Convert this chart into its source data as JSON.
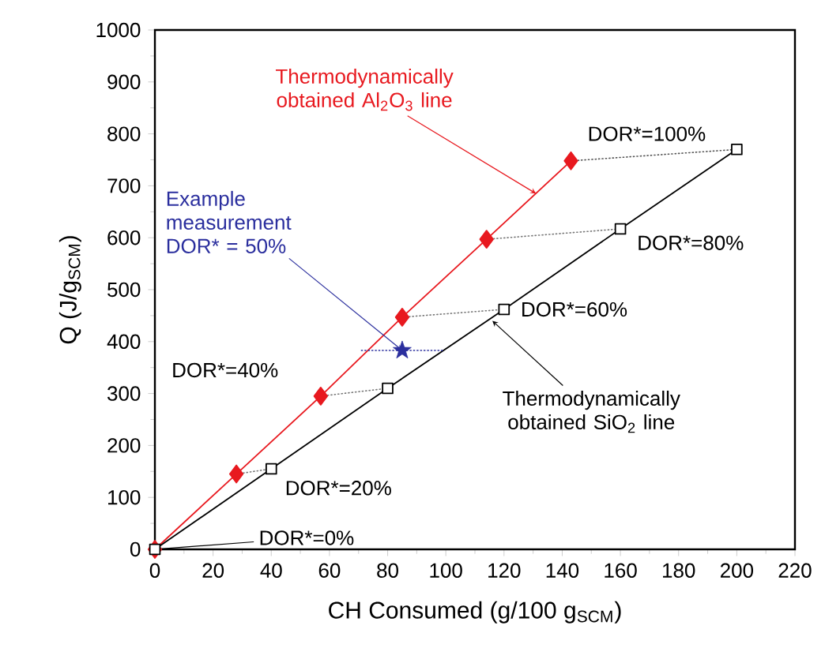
{
  "chart_data": {
    "type": "line",
    "xlabel": "CH Consumed (g/100 g$_{SCM}$)",
    "ylabel": "Q (J/g$_{SCM}$)",
    "xlim": [
      0,
      220
    ],
    "xticks": [
      0,
      20,
      40,
      60,
      80,
      100,
      120,
      140,
      160,
      180,
      200,
      220
    ],
    "ylim": [
      0,
      1000
    ],
    "yticks": [
      0,
      100,
      200,
      300,
      400,
      500,
      600,
      700,
      800,
      900,
      1000
    ],
    "series": [
      {
        "color": "#e8191f",
        "marker": "diamond",
        "line_style": "solid",
        "x": [
          0,
          28,
          57,
          85,
          114,
          143
        ],
        "values": [
          0,
          145,
          295,
          447,
          597,
          748
        ]
      },
      {
        "color": "#000000",
        "marker": "square",
        "line_style": "solid",
        "x": [
          0,
          40,
          80,
          120,
          160,
          200
        ],
        "values": [
          0,
          155,
          310,
          462,
          617,
          770
        ]
      },
      {
        "color": "#777777",
        "marker": "none",
        "line_style": "dotted",
        "x": [
          28,
          40
        ],
        "values": [
          145,
          155
        ]
      },
      {
        "color": "#777777",
        "marker": "none",
        "line_style": "dotted",
        "x": [
          57,
          80
        ],
        "values": [
          295,
          310
        ]
      },
      {
        "color": "#777777",
        "marker": "none",
        "line_style": "dotted",
        "x": [
          85,
          120
        ],
        "values": [
          447,
          462
        ]
      },
      {
        "color": "#777777",
        "marker": "none",
        "line_style": "dotted",
        "x": [
          114,
          160
        ],
        "values": [
          597,
          617
        ]
      },
      {
        "color": "#555555",
        "marker": "none",
        "line_style": "dotted",
        "x": [
          143,
          200
        ],
        "values": [
          748,
          770
        ]
      },
      {
        "color": "#2b2f9e",
        "marker": "none",
        "line_style": "dotted",
        "x": [
          71,
          99
        ],
        "values": [
          383,
          383
        ]
      },
      {
        "type": "scatter",
        "color": "#2b2f9e",
        "marker": "star",
        "x": [
          85
        ],
        "values": [
          383
        ]
      }
    ],
    "annotations": [
      {
        "text": "Thermodynamically obtained Al$_{2}$O$_{3}$ line",
        "x": 131,
        "y": 685
      },
      {
        "text": "Thermodynamically obtained SiO$_{2}$ line",
        "x": 116,
        "y": 440
      },
      {
        "text": "Example measurement DOR* = 50%",
        "x": 85,
        "y": 383
      },
      {
        "text": "DOR*=0%",
        "x": 0,
        "y": 0
      },
      "DOR*=20%",
      "DOR*=40%",
      "DOR*=60%",
      "DOR*=80%",
      "DOR*=100%"
    ]
  }
}
